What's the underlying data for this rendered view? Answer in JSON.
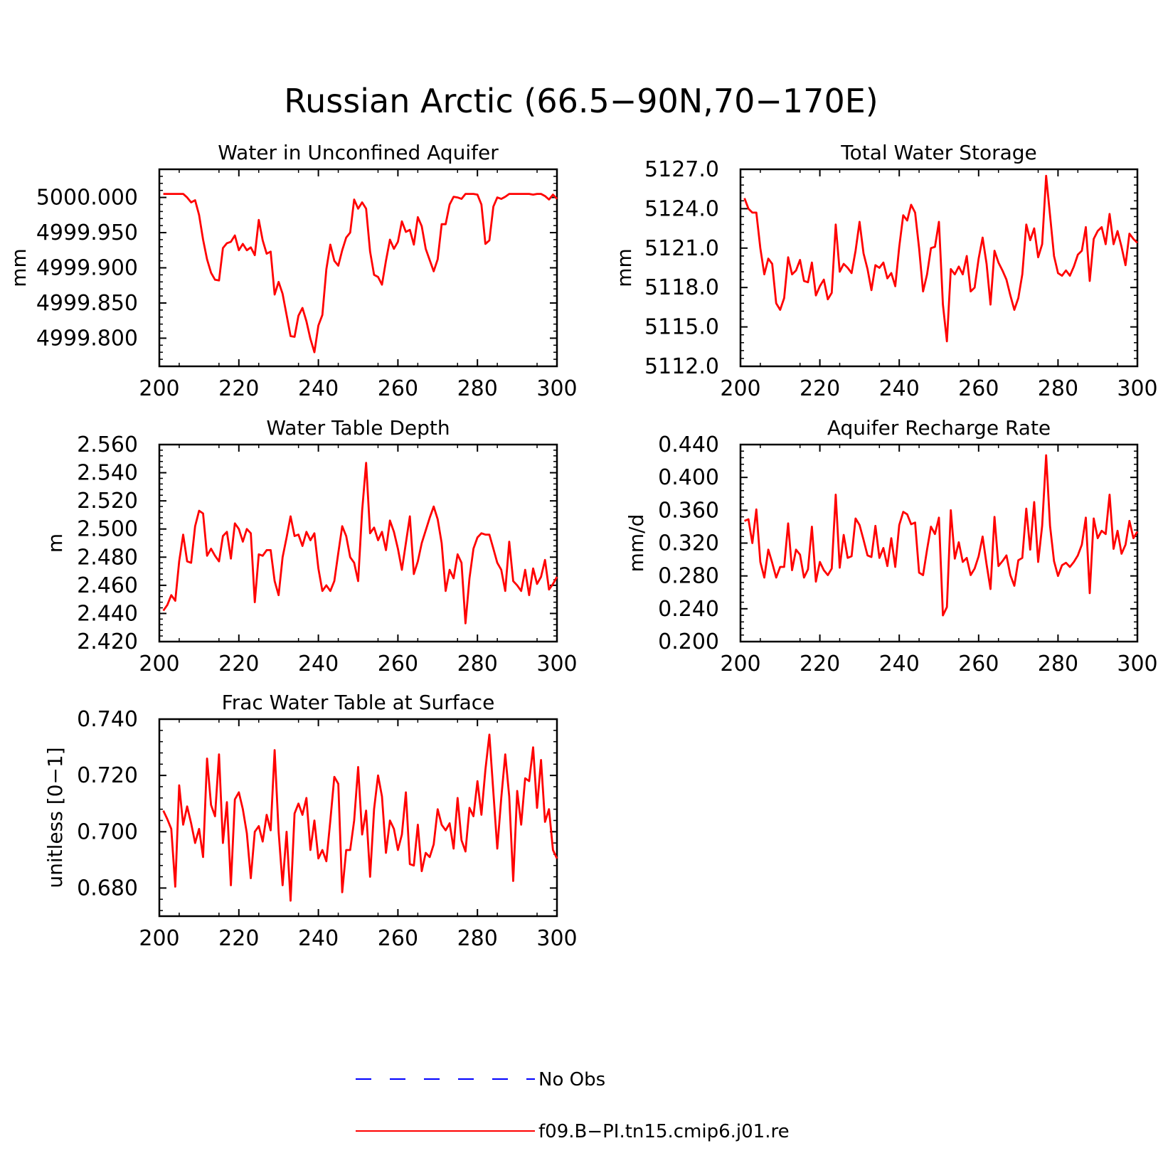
{
  "title": "Russian Arctic (66.5−90N,70−170E)",
  "colors": {
    "model": "#ff0000",
    "obs": "#0000ff",
    "axis": "#000000"
  },
  "legend": [
    {
      "label": "No Obs",
      "color": "#0000ff",
      "style": "dashed"
    },
    {
      "label": "f09.B−PI.tn15.cmip6.j01.re",
      "color": "#ff0000",
      "style": "solid"
    }
  ],
  "chart_data": [
    {
      "type": "line",
      "title": "Water in Unconfined Aquifer",
      "ylabel": "mm",
      "xlim": [
        200,
        300
      ],
      "ylim": [
        4999.76,
        5000.04
      ],
      "xticks": [
        "200",
        "220",
        "240",
        "260",
        "280",
        "300"
      ],
      "yticks": [
        "4999.800",
        "4999.850",
        "4999.900",
        "4999.950",
        "5000.000"
      ],
      "x_start": 201,
      "series": [
        {
          "name": "f09.B−PI.tn15.cmip6.j01.re",
          "values": [
            5000.005,
            5000.005,
            5000.005,
            5000.005,
            5000.005,
            5000.005,
            5000.0,
            4999.993,
            4999.996,
            4999.975,
            4999.94,
            4999.912,
            4999.893,
            4999.883,
            4999.882,
            4999.928,
            4999.935,
            4999.937,
            4999.946,
            4999.925,
            4999.934,
            4999.925,
            4999.929,
            4999.918,
            4999.968,
            4999.939,
            4999.92,
            4999.923,
            4999.862,
            4999.88,
            4999.863,
            4999.833,
            4999.803,
            4999.802,
            4999.832,
            4999.843,
            4999.824,
            4999.799,
            4999.78,
            4999.818,
            4999.833,
            4999.898,
            4999.933,
            4999.91,
            4999.903,
            4999.925,
            4999.943,
            4999.95,
            4999.997,
            4999.984,
            4999.993,
            4999.984,
            4999.923,
            4999.89,
            4999.887,
            4999.876,
            4999.91,
            4999.94,
            4999.927,
            4999.937,
            4999.966,
            4999.951,
            4999.954,
            4999.933,
            4999.972,
            4999.959,
            4999.927,
            4999.911,
            4999.895,
            4999.912,
            4999.962,
            4999.962,
            4999.99,
            5000.001,
            5000.0,
            4999.998,
            5000.005,
            5000.005,
            5000.005,
            5000.004,
            4999.99,
            4999.934,
            4999.939,
            4999.987,
            5000.0,
            4999.998,
            5000.001,
            5000.005,
            5000.005,
            5000.005,
            5000.005,
            5000.005,
            5000.005,
            5000.004,
            5000.005,
            5000.005,
            5000.002,
            4999.997,
            5000.004,
            4999.998
          ]
        }
      ]
    },
    {
      "type": "line",
      "title": "Total Water Storage",
      "ylabel": "mm",
      "xlim": [
        200,
        300
      ],
      "ylim": [
        5112.0,
        5127.0
      ],
      "xticks": [
        "200",
        "220",
        "240",
        "260",
        "280",
        "300"
      ],
      "yticks": [
        "5112.0",
        "5115.0",
        "5118.0",
        "5121.0",
        "5124.0",
        "5127.0"
      ],
      "x_start": 201,
      "series": [
        {
          "name": "f09.B−PI.tn15.cmip6.j01.re",
          "values": [
            5124.8,
            5124.0,
            5123.7,
            5123.7,
            5121.0,
            5119.0,
            5120.2,
            5119.8,
            5116.8,
            5116.3,
            5117.2,
            5120.3,
            5119.0,
            5119.3,
            5120.1,
            5118.5,
            5118.4,
            5119.9,
            5117.4,
            5118.1,
            5118.6,
            5117.1,
            5117.6,
            5122.8,
            5119.2,
            5119.8,
            5119.5,
            5119.1,
            5120.8,
            5123.0,
            5120.6,
            5119.4,
            5117.8,
            5119.7,
            5119.5,
            5119.9,
            5118.7,
            5119.1,
            5118.1,
            5121.1,
            5123.5,
            5123.1,
            5124.3,
            5123.7,
            5121.0,
            5117.7,
            5119.0,
            5121.0,
            5121.1,
            5123.0,
            5116.7,
            5113.9,
            5119.4,
            5119.0,
            5119.6,
            5119.0,
            5120.4,
            5117.7,
            5118.0,
            5120.2,
            5121.8,
            5119.8,
            5116.7,
            5120.8,
            5119.9,
            5119.3,
            5118.6,
            5117.4,
            5116.3,
            5117.2,
            5119.0,
            5122.8,
            5121.6,
            5122.5,
            5120.3,
            5121.3,
            5126.5,
            5123.5,
            5120.4,
            5119.1,
            5118.9,
            5119.3,
            5118.9,
            5119.6,
            5120.5,
            5120.8,
            5122.6,
            5118.5,
            5121.7,
            5122.3,
            5122.6,
            5121.3,
            5123.6,
            5121.3,
            5122.3,
            5121.1,
            5119.7,
            5122.1,
            5121.7,
            5121.4
          ]
        }
      ]
    },
    {
      "type": "line",
      "title": "Water Table Depth",
      "ylabel": "m",
      "xlim": [
        200,
        300
      ],
      "ylim": [
        2.42,
        2.56
      ],
      "xticks": [
        "200",
        "220",
        "240",
        "260",
        "280",
        "300"
      ],
      "yticks": [
        "2.420",
        "2.440",
        "2.460",
        "2.480",
        "2.500",
        "2.520",
        "2.540",
        "2.560"
      ],
      "x_start": 201,
      "series": [
        {
          "name": "f09.B−PI.tn15.cmip6.j01.re",
          "values": [
            2.442,
            2.446,
            2.453,
            2.449,
            2.477,
            2.496,
            2.477,
            2.476,
            2.502,
            2.513,
            2.511,
            2.481,
            2.486,
            2.481,
            2.477,
            2.495,
            2.498,
            2.479,
            2.504,
            2.5,
            2.491,
            2.5,
            2.497,
            2.448,
            2.482,
            2.481,
            2.485,
            2.485,
            2.463,
            2.453,
            2.48,
            2.494,
            2.509,
            2.495,
            2.496,
            2.488,
            2.498,
            2.492,
            2.497,
            2.472,
            2.456,
            2.46,
            2.456,
            2.463,
            2.483,
            2.502,
            2.495,
            2.48,
            2.476,
            2.463,
            2.513,
            2.547,
            2.497,
            2.501,
            2.492,
            2.498,
            2.485,
            2.506,
            2.498,
            2.486,
            2.471,
            2.49,
            2.509,
            2.468,
            2.477,
            2.49,
            2.499,
            2.508,
            2.516,
            2.507,
            2.49,
            2.456,
            2.471,
            2.465,
            2.482,
            2.476,
            2.433,
            2.465,
            2.486,
            2.494,
            2.497,
            2.496,
            2.496,
            2.486,
            2.476,
            2.471,
            2.456,
            2.491,
            2.463,
            2.46,
            2.456,
            2.471,
            2.453,
            2.472,
            2.461,
            2.466,
            2.478,
            2.457,
            2.461,
            2.466
          ]
        }
      ]
    },
    {
      "type": "line",
      "title": "Aquifer Recharge Rate",
      "ylabel": "mm/d",
      "xlim": [
        200,
        300
      ],
      "ylim": [
        0.2,
        0.44
      ],
      "xticks": [
        "200",
        "220",
        "240",
        "260",
        "280",
        "300"
      ],
      "yticks": [
        "0.200",
        "0.240",
        "0.280",
        "0.320",
        "0.360",
        "0.400",
        "0.440"
      ],
      "x_start": 201,
      "series": [
        {
          "name": "f09.B−PI.tn15.cmip6.j01.re",
          "values": [
            0.347,
            0.349,
            0.32,
            0.361,
            0.297,
            0.278,
            0.312,
            0.296,
            0.278,
            0.291,
            0.291,
            0.344,
            0.287,
            0.312,
            0.306,
            0.278,
            0.288,
            0.34,
            0.273,
            0.297,
            0.287,
            0.281,
            0.289,
            0.379,
            0.29,
            0.33,
            0.302,
            0.304,
            0.35,
            0.342,
            0.324,
            0.305,
            0.303,
            0.341,
            0.302,
            0.314,
            0.292,
            0.326,
            0.291,
            0.342,
            0.358,
            0.355,
            0.343,
            0.345,
            0.284,
            0.281,
            0.312,
            0.34,
            0.331,
            0.351,
            0.232,
            0.242,
            0.36,
            0.301,
            0.321,
            0.297,
            0.302,
            0.281,
            0.289,
            0.304,
            0.328,
            0.294,
            0.264,
            0.352,
            0.292,
            0.298,
            0.305,
            0.281,
            0.268,
            0.299,
            0.302,
            0.362,
            0.312,
            0.37,
            0.297,
            0.341,
            0.427,
            0.341,
            0.298,
            0.28,
            0.293,
            0.296,
            0.291,
            0.297,
            0.305,
            0.318,
            0.351,
            0.259,
            0.35,
            0.326,
            0.335,
            0.331,
            0.379,
            0.313,
            0.335,
            0.307,
            0.318,
            0.347,
            0.326,
            0.334
          ]
        }
      ]
    },
    {
      "type": "line",
      "title": "Frac Water Table at Surface",
      "ylabel": "unitless [0−1]",
      "xlim": [
        200,
        300
      ],
      "ylim": [
        0.67,
        0.74
      ],
      "xticks": [
        "200",
        "220",
        "240",
        "260",
        "280",
        "300"
      ],
      "yticks": [
        "0.680",
        "0.700",
        "0.720",
        "0.740"
      ],
      "x_start": 201,
      "series": [
        {
          "name": "f09.B−PI.tn15.cmip6.j01.re",
          "values": [
            0.7075,
            0.7045,
            0.701,
            0.6805,
            0.7165,
            0.7025,
            0.709,
            0.703,
            0.696,
            0.701,
            0.691,
            0.726,
            0.7095,
            0.7055,
            0.7275,
            0.696,
            0.7105,
            0.681,
            0.7115,
            0.714,
            0.708,
            0.6995,
            0.6835,
            0.7,
            0.702,
            0.6965,
            0.706,
            0.7005,
            0.729,
            0.7,
            0.681,
            0.7,
            0.6755,
            0.7065,
            0.71,
            0.706,
            0.712,
            0.6935,
            0.704,
            0.6905,
            0.6935,
            0.6895,
            0.704,
            0.7195,
            0.717,
            0.6785,
            0.6935,
            0.6935,
            0.704,
            0.723,
            0.699,
            0.7075,
            0.684,
            0.708,
            0.72,
            0.7125,
            0.6925,
            0.704,
            0.701,
            0.6935,
            0.699,
            0.714,
            0.6885,
            0.688,
            0.7025,
            0.686,
            0.6925,
            0.691,
            0.6955,
            0.708,
            0.7025,
            0.7005,
            0.703,
            0.694,
            0.712,
            0.697,
            0.693,
            0.7085,
            0.7055,
            0.718,
            0.706,
            0.722,
            0.7345,
            0.714,
            0.694,
            0.712,
            0.7275,
            0.7125,
            0.6825,
            0.7145,
            0.7025,
            0.719,
            0.718,
            0.73,
            0.7085,
            0.7255,
            0.7035,
            0.708,
            0.6935,
            0.6905
          ]
        }
      ]
    }
  ]
}
